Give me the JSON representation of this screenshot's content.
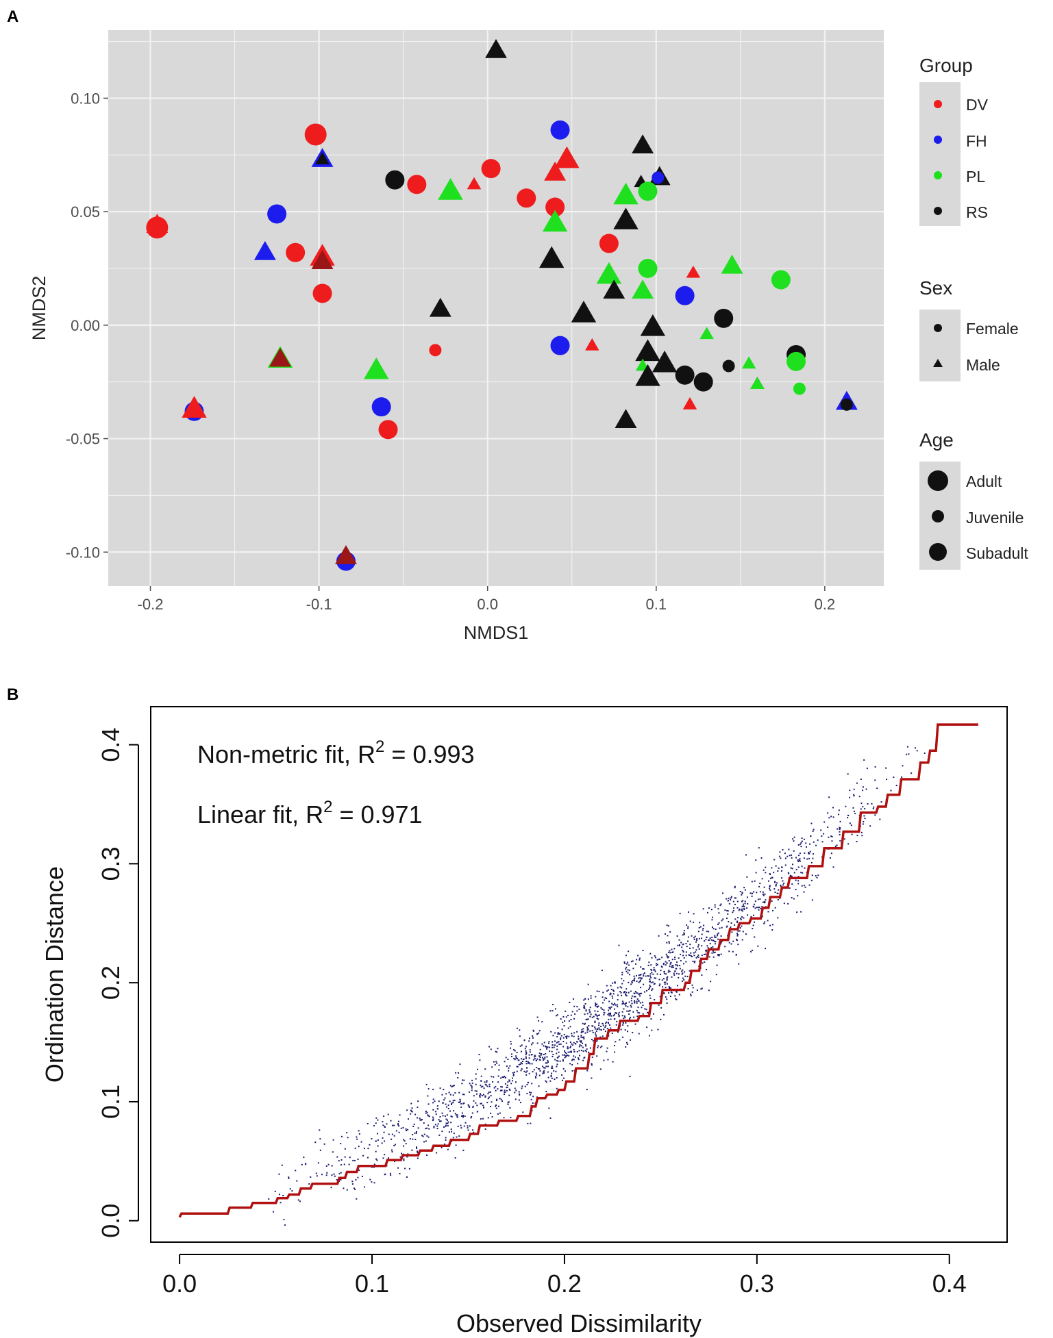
{
  "chart_data": [
    {
      "panel": "A",
      "type": "scatter",
      "title": "",
      "xlabel": "NMDS1",
      "ylabel": "NMDS2",
      "xlim": [
        -0.225,
        0.235
      ],
      "ylim": [
        -0.115,
        0.13
      ],
      "xticks": [
        -0.2,
        -0.1,
        0.0,
        0.1,
        0.2
      ],
      "xtick_labels": [
        "-0.2",
        "-0.1",
        "0.0",
        "0.1",
        "0.2"
      ],
      "yticks": [
        -0.1,
        -0.05,
        0.0,
        0.05,
        0.1
      ],
      "ytick_labels": [
        "-0.10",
        "-0.05",
        "0.00",
        "0.05",
        "0.10"
      ],
      "grid": true,
      "legend_position": "right",
      "legend": {
        "group": {
          "title": "Group",
          "items": [
            {
              "label": "DV",
              "color": "#ee1c1c"
            },
            {
              "label": "FH",
              "color": "#1c1cee"
            },
            {
              "label": "PL",
              "color": "#1fe01f"
            },
            {
              "label": "RS",
              "color": "#111111"
            }
          ]
        },
        "sex": {
          "title": "Sex",
          "items": [
            {
              "label": "Female",
              "shape": "circle"
            },
            {
              "label": "Male",
              "shape": "triangle"
            }
          ]
        },
        "age": {
          "title": "Age",
          "items": [
            {
              "label": "Adult",
              "size": "large"
            },
            {
              "label": "Juvenile",
              "size": "small"
            },
            {
              "label": "Subadult",
              "size": "medium"
            }
          ]
        }
      },
      "colors": {
        "DV": "#ee1c1c",
        "FH": "#1c1cee",
        "PL": "#1fe01f",
        "RS": "#111111",
        "DV_dark": "#9b1616"
      },
      "points": [
        {
          "x": 0.005,
          "y": 0.121,
          "g": "RS",
          "s": "M",
          "a": "Sub"
        },
        {
          "x": 0.043,
          "y": 0.086,
          "g": "FH",
          "s": "F",
          "a": "Sub"
        },
        {
          "x": -0.102,
          "y": 0.084,
          "g": "DV",
          "s": "F",
          "a": "Adult"
        },
        {
          "x": 0.092,
          "y": 0.079,
          "g": "RS",
          "s": "M",
          "a": "Sub"
        },
        {
          "x": -0.098,
          "y": 0.073,
          "g": "FH",
          "s": "M",
          "a": "Sub"
        },
        {
          "x": -0.098,
          "y": 0.073,
          "g": "RS",
          "s": "M",
          "a": "Juv"
        },
        {
          "x": 0.047,
          "y": 0.073,
          "g": "DV",
          "s": "M",
          "a": "Adult"
        },
        {
          "x": 0.04,
          "y": 0.067,
          "g": "DV",
          "s": "M",
          "a": "Sub"
        },
        {
          "x": 0.102,
          "y": 0.065,
          "g": "RS",
          "s": "M",
          "a": "Sub"
        },
        {
          "x": 0.101,
          "y": 0.065,
          "g": "FH",
          "s": "F",
          "a": "Juv"
        },
        {
          "x": -0.055,
          "y": 0.064,
          "g": "RS",
          "s": "F",
          "a": "Sub"
        },
        {
          "x": 0.091,
          "y": 0.063,
          "g": "RS",
          "s": "M",
          "a": "Juv"
        },
        {
          "x": -0.042,
          "y": 0.062,
          "g": "DV",
          "s": "F",
          "a": "Sub"
        },
        {
          "x": -0.008,
          "y": 0.062,
          "g": "DV",
          "s": "M",
          "a": "Juv"
        },
        {
          "x": 0.002,
          "y": 0.069,
          "g": "DV",
          "s": "F",
          "a": "Sub"
        },
        {
          "x": -0.022,
          "y": 0.059,
          "g": "PL",
          "s": "M",
          "a": "Adult"
        },
        {
          "x": 0.095,
          "y": 0.059,
          "g": "PL",
          "s": "F",
          "a": "Sub"
        },
        {
          "x": 0.082,
          "y": 0.057,
          "g": "PL",
          "s": "M",
          "a": "Adult"
        },
        {
          "x": 0.023,
          "y": 0.056,
          "g": "DV",
          "s": "F",
          "a": "Sub"
        },
        {
          "x": 0.04,
          "y": 0.052,
          "g": "DV",
          "s": "F",
          "a": "Sub"
        },
        {
          "x": -0.125,
          "y": 0.049,
          "g": "FH",
          "s": "F",
          "a": "Sub"
        },
        {
          "x": 0.082,
          "y": 0.046,
          "g": "RS",
          "s": "M",
          "a": "Adult"
        },
        {
          "x": 0.04,
          "y": 0.045,
          "g": "PL",
          "s": "M",
          "a": "Adult"
        },
        {
          "x": -0.196,
          "y": 0.043,
          "g": "DV",
          "s": "F",
          "a": "Adult"
        },
        {
          "x": -0.196,
          "y": 0.044,
          "g": "DV",
          "s": "M",
          "a": "Sub"
        },
        {
          "x": 0.072,
          "y": 0.036,
          "g": "DV",
          "s": "F",
          "a": "Sub"
        },
        {
          "x": -0.114,
          "y": 0.032,
          "g": "DV",
          "s": "F",
          "a": "Sub"
        },
        {
          "x": -0.132,
          "y": 0.032,
          "g": "FH",
          "s": "M",
          "a": "Sub"
        },
        {
          "x": -0.098,
          "y": 0.03,
          "g": "DV",
          "s": "M",
          "a": "Adult"
        },
        {
          "x": -0.098,
          "y": 0.028,
          "g": "DV_dark",
          "s": "M",
          "a": "Sub"
        },
        {
          "x": 0.038,
          "y": 0.029,
          "g": "RS",
          "s": "M",
          "a": "Adult"
        },
        {
          "x": 0.174,
          "y": 0.02,
          "g": "PL",
          "s": "F",
          "a": "Sub"
        },
        {
          "x": 0.145,
          "y": 0.026,
          "g": "PL",
          "s": "M",
          "a": "Sub"
        },
        {
          "x": 0.095,
          "y": 0.025,
          "g": "PL",
          "s": "F",
          "a": "Sub"
        },
        {
          "x": 0.122,
          "y": 0.023,
          "g": "DV",
          "s": "M",
          "a": "Juv"
        },
        {
          "x": 0.072,
          "y": 0.022,
          "g": "PL",
          "s": "M",
          "a": "Adult"
        },
        {
          "x": -0.098,
          "y": 0.014,
          "g": "DV",
          "s": "F",
          "a": "Sub"
        },
        {
          "x": 0.075,
          "y": 0.015,
          "g": "RS",
          "s": "M",
          "a": "Sub"
        },
        {
          "x": 0.092,
          "y": 0.015,
          "g": "PL",
          "s": "M",
          "a": "Sub"
        },
        {
          "x": 0.117,
          "y": 0.013,
          "g": "FH",
          "s": "F",
          "a": "Sub"
        },
        {
          "x": -0.028,
          "y": 0.007,
          "g": "RS",
          "s": "M",
          "a": "Sub"
        },
        {
          "x": 0.057,
          "y": 0.005,
          "g": "RS",
          "s": "M",
          "a": "Adult"
        },
        {
          "x": 0.14,
          "y": 0.003,
          "g": "RS",
          "s": "F",
          "a": "Sub"
        },
        {
          "x": 0.098,
          "y": -0.001,
          "g": "RS",
          "s": "M",
          "a": "Adult"
        },
        {
          "x": 0.13,
          "y": -0.004,
          "g": "PL",
          "s": "M",
          "a": "Juv"
        },
        {
          "x": 0.043,
          "y": -0.009,
          "g": "FH",
          "s": "F",
          "a": "Sub"
        },
        {
          "x": 0.062,
          "y": -0.009,
          "g": "DV",
          "s": "M",
          "a": "Juv"
        },
        {
          "x": -0.031,
          "y": -0.011,
          "g": "DV",
          "s": "F",
          "a": "Juv"
        },
        {
          "x": 0.095,
          "y": -0.012,
          "g": "RS",
          "s": "M",
          "a": "Adult"
        },
        {
          "x": 0.183,
          "y": -0.013,
          "g": "RS",
          "s": "F",
          "a": "Sub"
        },
        {
          "x": 0.183,
          "y": -0.016,
          "g": "PL",
          "s": "F",
          "a": "Sub"
        },
        {
          "x": -0.123,
          "y": -0.015,
          "g": "PL",
          "s": "M",
          "a": "Adult"
        },
        {
          "x": -0.123,
          "y": -0.015,
          "g": "DV_dark",
          "s": "M",
          "a": "Sub"
        },
        {
          "x": 0.105,
          "y": -0.017,
          "g": "RS",
          "s": "M",
          "a": "Adult"
        },
        {
          "x": 0.155,
          "y": -0.017,
          "g": "PL",
          "s": "M",
          "a": "Juv"
        },
        {
          "x": 0.143,
          "y": -0.018,
          "g": "RS",
          "s": "F",
          "a": "Juv"
        },
        {
          "x": 0.092,
          "y": -0.018,
          "g": "PL",
          "s": "M",
          "a": "Juv"
        },
        {
          "x": -0.066,
          "y": -0.02,
          "g": "PL",
          "s": "M",
          "a": "Adult"
        },
        {
          "x": 0.117,
          "y": -0.022,
          "g": "RS",
          "s": "F",
          "a": "Sub"
        },
        {
          "x": 0.095,
          "y": -0.023,
          "g": "RS",
          "s": "M",
          "a": "Adult"
        },
        {
          "x": 0.128,
          "y": -0.025,
          "g": "RS",
          "s": "F",
          "a": "Sub"
        },
        {
          "x": 0.16,
          "y": -0.026,
          "g": "RS",
          "s": "M",
          "a": "Juv"
        },
        {
          "x": 0.16,
          "y": -0.026,
          "g": "PL",
          "s": "M",
          "a": "Juv"
        },
        {
          "x": 0.185,
          "y": -0.028,
          "g": "PL",
          "s": "F",
          "a": "Juv"
        },
        {
          "x": 0.213,
          "y": -0.034,
          "g": "FH",
          "s": "M",
          "a": "Sub"
        },
        {
          "x": 0.213,
          "y": -0.035,
          "g": "RS",
          "s": "F",
          "a": "Juv"
        },
        {
          "x": 0.12,
          "y": -0.035,
          "g": "DV",
          "s": "M",
          "a": "Juv"
        },
        {
          "x": -0.063,
          "y": -0.036,
          "g": "FH",
          "s": "F",
          "a": "Sub"
        },
        {
          "x": -0.174,
          "y": -0.038,
          "g": "FH",
          "s": "F",
          "a": "Sub"
        },
        {
          "x": -0.174,
          "y": -0.037,
          "g": "DV",
          "s": "M",
          "a": "Adult"
        },
        {
          "x": 0.082,
          "y": -0.042,
          "g": "RS",
          "s": "M",
          "a": "Sub"
        },
        {
          "x": -0.059,
          "y": -0.046,
          "g": "DV",
          "s": "F",
          "a": "Sub"
        },
        {
          "x": -0.084,
          "y": -0.104,
          "g": "FH",
          "s": "F",
          "a": "Sub"
        },
        {
          "x": -0.084,
          "y": -0.102,
          "g": "DV_dark",
          "s": "M",
          "a": "Sub"
        }
      ]
    },
    {
      "panel": "B",
      "type": "scatter",
      "title": "",
      "xlabel": "Observed Dissimilarity",
      "ylabel": "Ordination Distance",
      "xlim": [
        -0.015,
        0.43
      ],
      "ylim": [
        -0.018,
        0.432
      ],
      "xticks": [
        0.0,
        0.1,
        0.2,
        0.3,
        0.4
      ],
      "xtick_labels": [
        "0.0",
        "0.1",
        "0.2",
        "0.3",
        "0.4"
      ],
      "yticks": [
        0.0,
        0.1,
        0.2,
        0.3,
        0.4
      ],
      "ytick_labels": [
        "0.0",
        "0.1",
        "0.2",
        "0.3",
        "0.4"
      ],
      "grid": false,
      "annotations": [
        {
          "prefix": "Non-metric fit, R",
          "sup": "2",
          "suffix": " = 0.993"
        },
        {
          "prefix": "Linear fit, R",
          "sup": "2",
          "suffix": " = 0.971"
        }
      ],
      "point_color": "#1a1a6e",
      "line_color": "#b01010",
      "stress_points_approx_count": 2000,
      "stress_points_model": {
        "center": "y = 0.43*x + 1.55*x^2",
        "spread_sd": 0.016,
        "x_range": [
          0.04,
          0.39
        ]
      },
      "step_line": [
        [
          0.0,
          0.003
        ],
        [
          0.001,
          0.006
        ],
        [
          0.025,
          0.006
        ],
        [
          0.026,
          0.011
        ],
        [
          0.037,
          0.011
        ],
        [
          0.038,
          0.015
        ],
        [
          0.05,
          0.015
        ],
        [
          0.051,
          0.019
        ],
        [
          0.056,
          0.019
        ],
        [
          0.057,
          0.022
        ],
        [
          0.062,
          0.022
        ],
        [
          0.063,
          0.027
        ],
        [
          0.068,
          0.027
        ],
        [
          0.069,
          0.031
        ],
        [
          0.082,
          0.031
        ],
        [
          0.083,
          0.036
        ],
        [
          0.086,
          0.036
        ],
        [
          0.087,
          0.041
        ],
        [
          0.092,
          0.041
        ],
        [
          0.093,
          0.046
        ],
        [
          0.107,
          0.046
        ],
        [
          0.108,
          0.051
        ],
        [
          0.115,
          0.051
        ],
        [
          0.116,
          0.055
        ],
        [
          0.124,
          0.055
        ],
        [
          0.125,
          0.059
        ],
        [
          0.131,
          0.059
        ],
        [
          0.132,
          0.063
        ],
        [
          0.14,
          0.063
        ],
        [
          0.141,
          0.068
        ],
        [
          0.15,
          0.068
        ],
        [
          0.151,
          0.073
        ],
        [
          0.155,
          0.073
        ],
        [
          0.156,
          0.08
        ],
        [
          0.165,
          0.08
        ],
        [
          0.166,
          0.084
        ],
        [
          0.175,
          0.084
        ],
        [
          0.176,
          0.088
        ],
        [
          0.182,
          0.088
        ],
        [
          0.183,
          0.096
        ],
        [
          0.185,
          0.096
        ],
        [
          0.186,
          0.103
        ],
        [
          0.19,
          0.103
        ],
        [
          0.191,
          0.106
        ],
        [
          0.196,
          0.106
        ],
        [
          0.197,
          0.11
        ],
        [
          0.2,
          0.11
        ],
        [
          0.201,
          0.117
        ],
        [
          0.205,
          0.117
        ],
        [
          0.206,
          0.128
        ],
        [
          0.212,
          0.128
        ],
        [
          0.213,
          0.14
        ],
        [
          0.215,
          0.14
        ],
        [
          0.216,
          0.153
        ],
        [
          0.222,
          0.153
        ],
        [
          0.223,
          0.16
        ],
        [
          0.228,
          0.16
        ],
        [
          0.229,
          0.168
        ],
        [
          0.238,
          0.168
        ],
        [
          0.239,
          0.172
        ],
        [
          0.244,
          0.172
        ],
        [
          0.245,
          0.183
        ],
        [
          0.25,
          0.183
        ],
        [
          0.251,
          0.194
        ],
        [
          0.262,
          0.194
        ],
        [
          0.263,
          0.2
        ],
        [
          0.265,
          0.2
        ],
        [
          0.266,
          0.21
        ],
        [
          0.27,
          0.21
        ],
        [
          0.271,
          0.22
        ],
        [
          0.274,
          0.22
        ],
        [
          0.275,
          0.228
        ],
        [
          0.28,
          0.228
        ],
        [
          0.281,
          0.236
        ],
        [
          0.285,
          0.236
        ],
        [
          0.286,
          0.245
        ],
        [
          0.29,
          0.245
        ],
        [
          0.291,
          0.25
        ],
        [
          0.296,
          0.25
        ],
        [
          0.297,
          0.254
        ],
        [
          0.302,
          0.254
        ],
        [
          0.303,
          0.263
        ],
        [
          0.306,
          0.263
        ],
        [
          0.307,
          0.272
        ],
        [
          0.312,
          0.272
        ],
        [
          0.313,
          0.28
        ],
        [
          0.316,
          0.28
        ],
        [
          0.317,
          0.288
        ],
        [
          0.326,
          0.288
        ],
        [
          0.327,
          0.298
        ],
        [
          0.334,
          0.298
        ],
        [
          0.335,
          0.313
        ],
        [
          0.344,
          0.313
        ],
        [
          0.345,
          0.327
        ],
        [
          0.353,
          0.327
        ],
        [
          0.354,
          0.343
        ],
        [
          0.362,
          0.343
        ],
        [
          0.363,
          0.348
        ],
        [
          0.367,
          0.348
        ],
        [
          0.368,
          0.358
        ],
        [
          0.374,
          0.358
        ],
        [
          0.375,
          0.371
        ],
        [
          0.384,
          0.371
        ],
        [
          0.385,
          0.385
        ],
        [
          0.389,
          0.385
        ],
        [
          0.39,
          0.395
        ],
        [
          0.393,
          0.395
        ],
        [
          0.394,
          0.417
        ],
        [
          0.415,
          0.417
        ]
      ]
    }
  ],
  "panels": {
    "a": {
      "label": "A"
    },
    "b": {
      "label": "B"
    }
  }
}
